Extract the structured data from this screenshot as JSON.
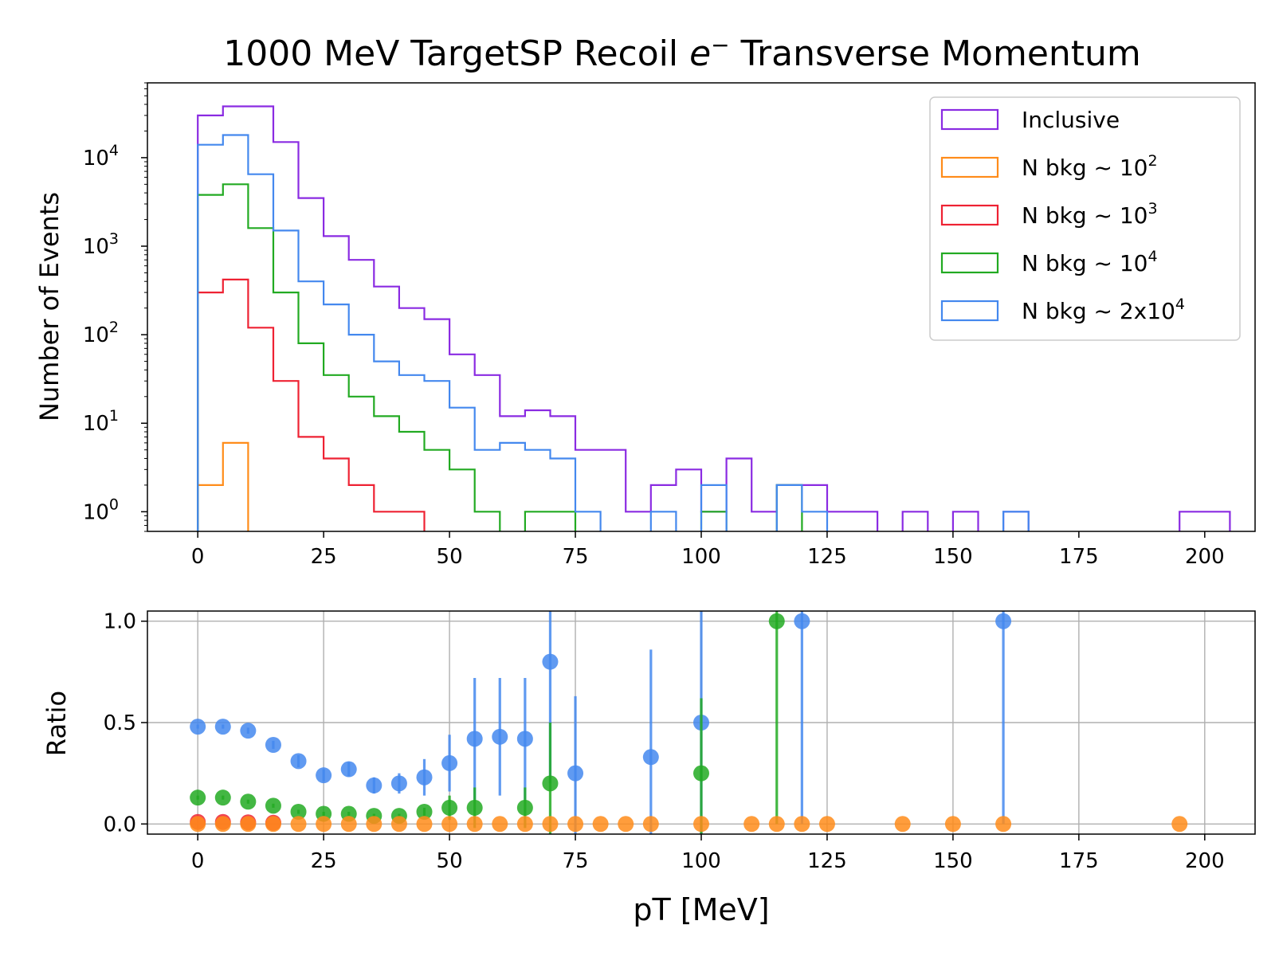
{
  "figure": {
    "title_main": "1000 MeV TargetSP Recoil ",
    "title_e": "e",
    "title_sup": "−",
    "title_end": " Transverse Momentum"
  },
  "chart_data": [
    {
      "type": "histogram-step",
      "panel": "top",
      "ylabel": "Number of Events",
      "yscale": "log",
      "xlim": [
        -10,
        210
      ],
      "ylim": [
        0.6,
        70000
      ],
      "bin_width": 5,
      "x_ticks": [
        "0",
        "25",
        "50",
        "75",
        "100",
        "125",
        "150",
        "175",
        "200"
      ],
      "y_ticks": [
        {
          "base": "10",
          "exp": "0",
          "value": 1
        },
        {
          "base": "10",
          "exp": "1",
          "value": 10
        },
        {
          "base": "10",
          "exp": "2",
          "value": 100
        },
        {
          "base": "10",
          "exp": "3",
          "value": 1000
        },
        {
          "base": "10",
          "exp": "4",
          "value": 10000
        }
      ],
      "legend_position": "top-right",
      "series": [
        {
          "key": "inclusive",
          "name": "Inclusive",
          "name_base": "Inclusive",
          "name_exp": "",
          "color": "#8a2be2",
          "bins": [
            [
              0,
              30000
            ],
            [
              5,
              38000
            ],
            [
              10,
              38000
            ],
            [
              15,
              15000
            ],
            [
              20,
              3500
            ],
            [
              25,
              1300
            ],
            [
              30,
              700
            ],
            [
              35,
              350
            ],
            [
              40,
              200
            ],
            [
              45,
              150
            ],
            [
              50,
              60
            ],
            [
              55,
              35
            ],
            [
              60,
              12
            ],
            [
              65,
              14
            ],
            [
              70,
              12
            ],
            [
              75,
              5
            ],
            [
              80,
              5
            ],
            [
              85,
              1
            ],
            [
              90,
              2
            ],
            [
              95,
              3
            ],
            [
              100,
              1
            ],
            [
              105,
              4
            ],
            [
              110,
              1
            ],
            [
              115,
              2
            ],
            [
              120,
              2
            ],
            [
              125,
              1
            ],
            [
              130,
              1
            ],
            [
              135,
              0
            ],
            [
              140,
              1
            ],
            [
              145,
              0
            ],
            [
              150,
              1
            ],
            [
              155,
              0
            ],
            [
              160,
              1
            ],
            [
              165,
              0
            ],
            [
              170,
              0
            ],
            [
              175,
              0
            ],
            [
              180,
              0
            ],
            [
              185,
              0
            ],
            [
              190,
              0
            ],
            [
              195,
              1
            ],
            [
              200,
              1
            ]
          ]
        },
        {
          "key": "bkg1e2",
          "name": "N bkg ~ 10^2",
          "name_base": "N bkg ~ 10",
          "name_exp": "2",
          "color": "#ff8c1a",
          "bins": [
            [
              0,
              2
            ],
            [
              5,
              6
            ],
            [
              10,
              0
            ]
          ]
        },
        {
          "key": "bkg1e3",
          "name": "N bkg ~ 10^3",
          "name_base": "N bkg ~ 10",
          "name_exp": "3",
          "color": "#ee2233",
          "bins": [
            [
              0,
              300
            ],
            [
              5,
              420
            ],
            [
              10,
              120
            ],
            [
              15,
              30
            ],
            [
              20,
              7
            ],
            [
              25,
              4
            ],
            [
              30,
              2
            ],
            [
              35,
              1
            ],
            [
              40,
              1
            ],
            [
              45,
              0
            ]
          ]
        },
        {
          "key": "bkg1e4",
          "name": "N bkg ~ 10^4",
          "name_base": "N bkg ~ 10",
          "name_exp": "4",
          "color": "#22aa22",
          "bins": [
            [
              0,
              3800
            ],
            [
              5,
              5000
            ],
            [
              10,
              1600
            ],
            [
              15,
              300
            ],
            [
              20,
              80
            ],
            [
              25,
              35
            ],
            [
              30,
              20
            ],
            [
              35,
              12
            ],
            [
              40,
              8
            ],
            [
              45,
              5
            ],
            [
              50,
              3
            ],
            [
              55,
              1
            ],
            [
              60,
              0
            ],
            [
              65,
              1
            ],
            [
              70,
              1
            ],
            [
              75,
              0
            ],
            [
              100,
              1
            ],
            [
              105,
              0
            ],
            [
              115,
              2
            ],
            [
              120,
              0
            ]
          ]
        },
        {
          "key": "bkg2e4",
          "name": "N bkg ~ 2x10^4",
          "name_base": "N bkg ~ 2x10",
          "name_exp": "4",
          "color": "#4488ee",
          "bins": [
            [
              0,
              14000
            ],
            [
              5,
              18000
            ],
            [
              10,
              6500
            ],
            [
              15,
              1500
            ],
            [
              20,
              400
            ],
            [
              25,
              220
            ],
            [
              30,
              100
            ],
            [
              35,
              50
            ],
            [
              40,
              35
            ],
            [
              45,
              30
            ],
            [
              50,
              15
            ],
            [
              55,
              5
            ],
            [
              60,
              6
            ],
            [
              65,
              5
            ],
            [
              70,
              4
            ],
            [
              75,
              1
            ],
            [
              80,
              0
            ],
            [
              90,
              1
            ],
            [
              95,
              0
            ],
            [
              100,
              2
            ],
            [
              105,
              0
            ],
            [
              115,
              2
            ],
            [
              120,
              1
            ],
            [
              125,
              0
            ],
            [
              160,
              1
            ],
            [
              165,
              0
            ]
          ]
        }
      ]
    },
    {
      "type": "scatter-errorbar",
      "panel": "bottom",
      "xlabel": "pT [MeV]",
      "ylabel": "Ratio",
      "xlim": [
        -10,
        210
      ],
      "ylim": [
        -0.05,
        1.05
      ],
      "grid": true,
      "x_ticks": [
        "0",
        "25",
        "50",
        "75",
        "100",
        "125",
        "150",
        "175",
        "200"
      ],
      "y_ticks": [
        "0.0",
        "0.5",
        "1.0"
      ],
      "series": [
        {
          "key": "bkg2e4",
          "color": "#4488ee",
          "points": [
            [
              0,
              0.48,
              0.01
            ],
            [
              5,
              0.48,
              0.01
            ],
            [
              10,
              0.46,
              0.015
            ],
            [
              15,
              0.39,
              0.02
            ],
            [
              20,
              0.31,
              0.03
            ],
            [
              25,
              0.24,
              0.03
            ],
            [
              30,
              0.27,
              0.035
            ],
            [
              35,
              0.19,
              0.04
            ],
            [
              40,
              0.2,
              0.05
            ],
            [
              45,
              0.23,
              0.09
            ],
            [
              50,
              0.3,
              0.14
            ],
            [
              55,
              0.42,
              0.3
            ],
            [
              60,
              0.43,
              0.29
            ],
            [
              65,
              0.42,
              0.3
            ],
            [
              70,
              0.8,
              0.6
            ],
            [
              75,
              0.25,
              0.38
            ],
            [
              90,
              0.33,
              0.53
            ],
            [
              100,
              0.5,
              0.6
            ],
            [
              120,
              1.0,
              1.0
            ],
            [
              160,
              1.0,
              1.0
            ]
          ]
        },
        {
          "key": "bkg1e4",
          "color": "#22aa22",
          "points": [
            [
              0,
              0.13,
              0.01
            ],
            [
              5,
              0.13,
              0.01
            ],
            [
              10,
              0.11,
              0.01
            ],
            [
              15,
              0.09,
              0.01
            ],
            [
              20,
              0.06,
              0.01
            ],
            [
              25,
              0.05,
              0.01
            ],
            [
              30,
              0.05,
              0.01
            ],
            [
              35,
              0.04,
              0.01
            ],
            [
              40,
              0.04,
              0.01
            ],
            [
              45,
              0.06,
              0.02
            ],
            [
              50,
              0.08,
              0.06
            ],
            [
              55,
              0.08,
              0.1
            ],
            [
              65,
              0.08,
              0.1
            ],
            [
              70,
              0.2,
              0.3
            ],
            [
              100,
              0.25,
              0.37
            ],
            [
              115,
              1.0,
              1.0
            ]
          ]
        },
        {
          "key": "bkg1e3",
          "color": "#ee2233",
          "points": [
            [
              0,
              0.01,
              0
            ],
            [
              5,
              0.01,
              0
            ],
            [
              10,
              0.008,
              0
            ],
            [
              15,
              0.006,
              0
            ]
          ]
        },
        {
          "key": "bkg1e2",
          "color": "#ff8c1a",
          "points": [
            [
              0,
              0
            ],
            [
              5,
              0
            ],
            [
              10,
              0
            ],
            [
              15,
              0
            ],
            [
              20,
              0
            ],
            [
              25,
              0
            ],
            [
              30,
              0
            ],
            [
              35,
              0
            ],
            [
              40,
              0
            ],
            [
              45,
              0
            ],
            [
              50,
              0
            ],
            [
              55,
              0
            ],
            [
              60,
              0
            ],
            [
              65,
              0
            ],
            [
              70,
              0
            ],
            [
              75,
              0
            ],
            [
              80,
              0
            ],
            [
              85,
              0
            ],
            [
              90,
              0
            ],
            [
              100,
              0
            ],
            [
              110,
              0
            ],
            [
              115,
              0
            ],
            [
              120,
              0
            ],
            [
              125,
              0
            ],
            [
              140,
              0
            ],
            [
              150,
              0
            ],
            [
              160,
              0
            ],
            [
              195,
              0
            ]
          ]
        }
      ]
    }
  ]
}
